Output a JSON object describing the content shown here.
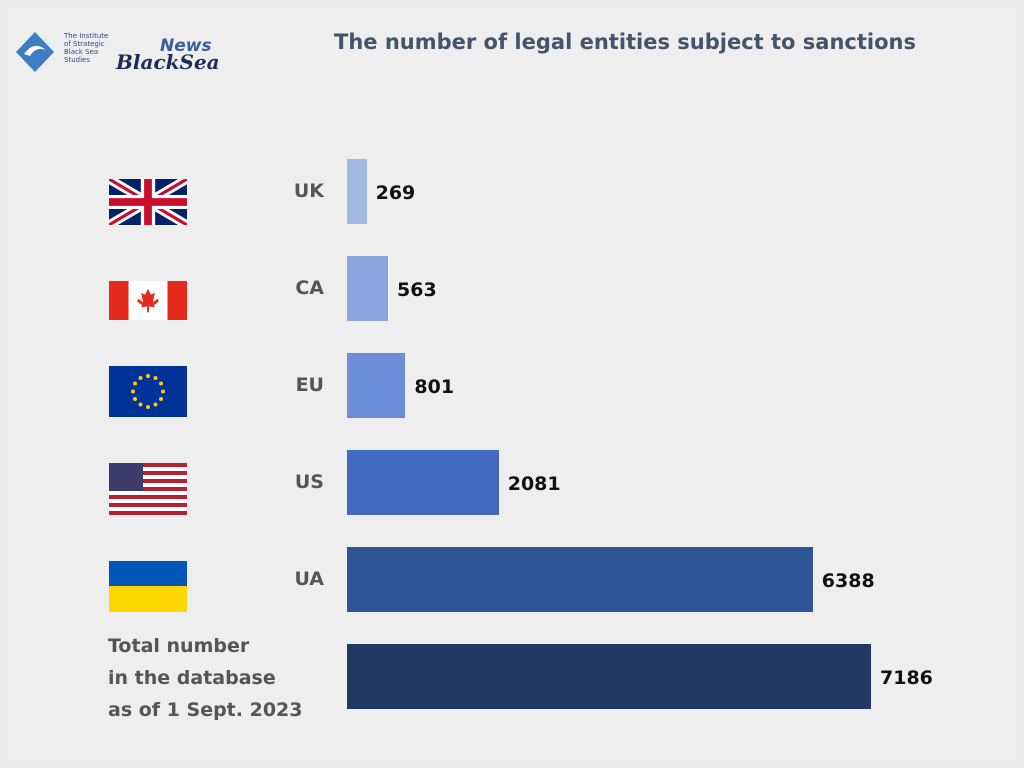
{
  "logo": {
    "institute": "The Institute\nof Strategic\nBlack Sea\nStudies",
    "news": "News",
    "brand": "BlackSea"
  },
  "chart_data": {
    "type": "bar",
    "orientation": "horizontal",
    "title": "The number of legal entities subject to sanctions",
    "categories": [
      "UK",
      "CA",
      "EU",
      "US",
      "UA",
      "Total number\nin the database\nas of 1 Sept. 2023"
    ],
    "values": [
      269,
      563,
      801,
      2081,
      6388,
      7186
    ],
    "colors": [
      "#a4b8e4",
      "#8aa5de",
      "#6b8cd6",
      "#4169bf",
      "#2f5597",
      "#1f3864"
    ]
  }
}
